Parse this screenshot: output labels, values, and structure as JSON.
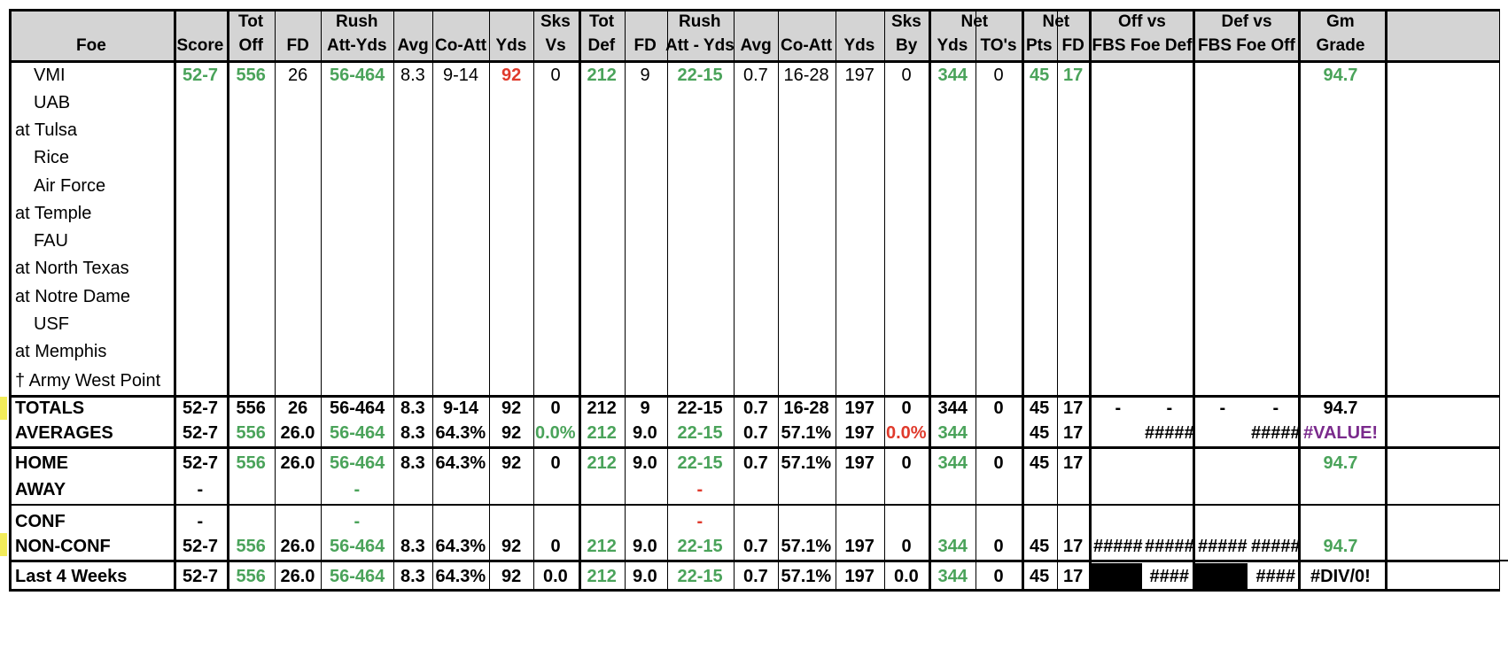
{
  "header": {
    "foe": "Foe",
    "score": "Score",
    "tot_off_1": "Tot",
    "tot_off_2": "Off",
    "fd": "FD",
    "rush_1": "Rush",
    "rush_off_2": "Att-Yds",
    "avg": "Avg",
    "co_att": "Co-Att",
    "yds": "Yds",
    "sks_1": "Sks",
    "sks_vs": "Vs",
    "tot_def_1": "Tot",
    "tot_def_2": "Def",
    "rush_def_2": "Att - Yds",
    "sks_by": "By",
    "net_1": "Net",
    "net_yds": "Yds",
    "net_tos": "TO's",
    "net_pts_1": "Net",
    "pts": "Pts",
    "net_fd": "FD",
    "off_vs_1": "Off vs",
    "off_vs_2": "FBS Foe Def",
    "def_vs_1": "Def vs",
    "def_vs_2": "FBS Foe Off",
    "gm_1": "Gm",
    "gm_2": "Grade"
  },
  "foes": [
    "VMI",
    "UAB",
    "at Tulsa",
    "Rice",
    "Air Force",
    "at Temple",
    "FAU",
    "at North Texas",
    "at Notre Dame",
    "USF",
    "at Memphis",
    "† Army West Point"
  ],
  "game1": {
    "score": "52-7",
    "tot_off": "556",
    "fd": "26",
    "rush": "56-464",
    "avg": "8.3",
    "co_att": "9-14",
    "yds": "92",
    "sks_vs": "0",
    "tot_def": "212",
    "dfd": "9",
    "drush": "22-15",
    "davg": "0.7",
    "dco_att": "16-28",
    "dyds": "197",
    "sks_by": "0",
    "net_yds": "344",
    "net_to": "0",
    "pts": "45",
    "nfd": "17",
    "grade": "94.7"
  },
  "totals": {
    "label": "TOTALS",
    "score": "52-7",
    "tot_off": "556",
    "fd": "26",
    "rush": "56-464",
    "avg": "8.3",
    "co_att": "9-14",
    "yds": "92",
    "sks_vs": "0",
    "tot_def": "212",
    "dfd": "9",
    "drush": "22-15",
    "davg": "0.7",
    "dco_att": "16-28",
    "dyds": "197",
    "sks_by": "0",
    "net_yds": "344",
    "net_to": "0",
    "pts": "45",
    "nfd": "17",
    "off1": "-",
    "off2": "-",
    "def1": "-",
    "def2": "-",
    "grade": "94.7"
  },
  "averages": {
    "label": "AVERAGES",
    "score": "52-7",
    "tot_off": "556",
    "fd": "26.0",
    "rush": "56-464",
    "avg": "8.3",
    "co_att": "64.3%",
    "yds": "92",
    "sks_vs": "0.0%",
    "tot_def": "212",
    "dfd": "9.0",
    "drush": "22-15",
    "davg": "0.7",
    "dco_att": "57.1%",
    "dyds": "197",
    "sks_by": "0.0%",
    "net_yds": "344",
    "pts": "45",
    "nfd": "17",
    "off2": "#####",
    "def2": "#####",
    "grade": "#VALUE!"
  },
  "home": {
    "label": "HOME",
    "score": "52-7",
    "tot_off": "556",
    "fd": "26.0",
    "rush": "56-464",
    "avg": "8.3",
    "co_att": "64.3%",
    "yds": "92",
    "sks_vs": "0",
    "tot_def": "212",
    "dfd": "9.0",
    "drush": "22-15",
    "davg": "0.7",
    "dco_att": "57.1%",
    "dyds": "197",
    "sks_by": "0",
    "net_yds": "344",
    "net_to": "0",
    "pts": "45",
    "nfd": "17",
    "grade": "94.7"
  },
  "away": {
    "label": "AWAY",
    "score": "-",
    "rush": "-",
    "drush": "-"
  },
  "conf": {
    "label": "CONF",
    "score": "-",
    "rush": "-",
    "drush": "-"
  },
  "nonconf": {
    "label": "NON-CONF",
    "score": "52-7",
    "tot_off": "556",
    "fd": "26.0",
    "rush": "56-464",
    "avg": "8.3",
    "co_att": "64.3%",
    "yds": "92",
    "sks_vs": "0",
    "tot_def": "212",
    "dfd": "9.0",
    "drush": "22-15",
    "davg": "0.7",
    "dco_att": "57.1%",
    "dyds": "197",
    "sks_by": "0",
    "net_yds": "344",
    "net_to": "0",
    "pts": "45",
    "nfd": "17",
    "off1": "#####",
    "off2": "#####",
    "def1": "#####",
    "def2": "#####",
    "grade": "94.7"
  },
  "last4": {
    "label": "Last 4 Weeks",
    "score": "52-7",
    "tot_off": "556",
    "fd": "26.0",
    "rush": "56-464",
    "avg": "8.3",
    "co_att": "64.3%",
    "yds": "92",
    "sks_vs": "0.0",
    "tot_def": "212",
    "dfd": "9.0",
    "drush": "22-15",
    "davg": "0.7",
    "dco_att": "57.1%",
    "dyds": "197",
    "sks_by": "0.0",
    "net_yds": "344",
    "net_to": "0",
    "pts": "45",
    "nfd": "17",
    "off2": "####",
    "def2": "####",
    "grade": "#DIV/0!"
  },
  "colors": {
    "green": "#4aa35a",
    "red": "#e03a2c",
    "purple": "#7a2a8c",
    "header_bg": "#d4d4d4",
    "highlight": "#f2ec5a"
  }
}
